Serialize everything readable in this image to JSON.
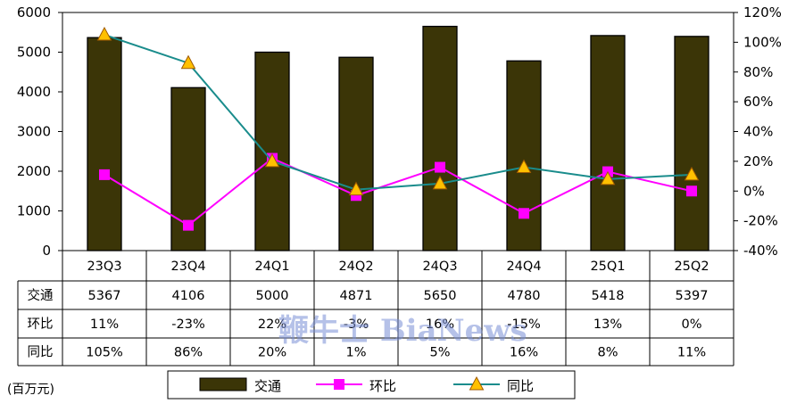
{
  "chart_data": {
    "type": "bar",
    "categories": [
      "23Q3",
      "23Q4",
      "24Q1",
      "24Q2",
      "24Q3",
      "24Q4",
      "25Q1",
      "25Q2"
    ],
    "series": [
      {
        "name": "交通",
        "kind": "bar",
        "axis": "left",
        "color": "#3b3507",
        "values": [
          5367,
          4106,
          5000,
          4871,
          5650,
          4780,
          5418,
          5397
        ]
      },
      {
        "name": "环比",
        "kind": "line",
        "axis": "right",
        "color": "#ff00ff",
        "marker": "square",
        "values": [
          11,
          -23,
          22,
          -3,
          16,
          -15,
          13,
          0
        ]
      },
      {
        "name": "同比",
        "kind": "line",
        "axis": "right",
        "color": "#1a8c8c",
        "marker": "triangle",
        "marker_color": "#ffc000",
        "values": [
          105,
          86,
          20,
          1,
          5,
          16,
          8,
          11
        ]
      }
    ],
    "left_axis": {
      "min": 0,
      "max": 6000,
      "step": 1000,
      "ticks": [
        "0",
        "1000",
        "2000",
        "3000",
        "4000",
        "5000",
        "6000"
      ]
    },
    "right_axis": {
      "min": -40,
      "max": 120,
      "step": 20,
      "ticks": [
        "-40%",
        "-20%",
        "0%",
        "20%",
        "40%",
        "60%",
        "80%",
        "100%",
        "120%"
      ]
    },
    "table": {
      "row_labels": [
        "交通",
        "环比",
        "同比"
      ],
      "rows": [
        [
          "5367",
          "4106",
          "5000",
          "4871",
          "5650",
          "4780",
          "5418",
          "5397"
        ],
        [
          "11%",
          "-23%",
          "22%",
          "-3%",
          "16%",
          "-15%",
          "13%",
          "0%"
        ],
        [
          "105%",
          "86%",
          "20%",
          "1%",
          "5%",
          "16%",
          "8%",
          "11%"
        ]
      ]
    },
    "unit": "(百万元)",
    "legend": {
      "placement": "bottom",
      "labels": [
        "交通",
        "环比",
        "同比"
      ]
    },
    "watermark": "鞭牛士 BiaNews"
  }
}
